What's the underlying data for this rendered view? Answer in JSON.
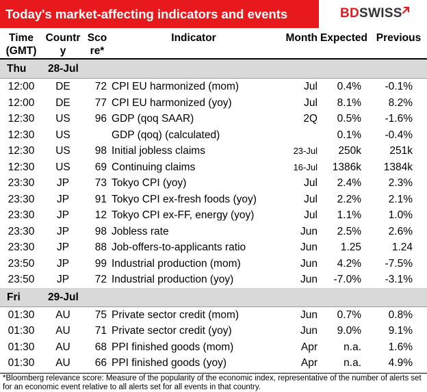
{
  "header": {
    "title": "Today's market-affecting indicators and events",
    "logo_bd": "BD",
    "logo_swiss": "SWISS",
    "accent_color": "#e8191c"
  },
  "columns": {
    "time": [
      "Time",
      "(GMT)"
    ],
    "country": [
      "Countr",
      "y"
    ],
    "score": [
      "Sco",
      "re*"
    ],
    "indicator": "Indicator",
    "month": "Month",
    "expected": "Expected",
    "previous": "Previous"
  },
  "days": [
    {
      "day": "Thu",
      "date": "28-Jul",
      "rows": [
        {
          "time": "12:00",
          "country": "DE",
          "score": "72",
          "indicator": "CPI EU harmonized (mom)",
          "month": "Jul",
          "expected": "0.4%",
          "previous": "-0.1%"
        },
        {
          "time": "12:00",
          "country": "DE",
          "score": "77",
          "indicator": "CPI EU harmonized (yoy)",
          "month": "Jul",
          "expected": "8.1%",
          "previous": "8.2%"
        },
        {
          "time": "12:30",
          "country": "US",
          "score": "96",
          "indicator": "GDP (qoq SAAR)",
          "month": "2Q",
          "expected": "0.5%",
          "previous": "-1.6%"
        },
        {
          "time": "12:30",
          "country": "US",
          "score": "",
          "indicator": "GDP (qoq) (calculated)",
          "month": "",
          "expected": "0.1%",
          "previous": "-0.4%"
        },
        {
          "time": "12:30",
          "country": "US",
          "score": "98",
          "indicator": "Initial jobless claims",
          "month": "23-Jul",
          "expected": "250k",
          "previous": "251k",
          "small_month": true
        },
        {
          "time": "12:30",
          "country": "US",
          "score": "69",
          "indicator": "Continuing claims",
          "month": "16-Jul",
          "expected": "1386k",
          "previous": "1384k",
          "small_month": true
        },
        {
          "time": "23:30",
          "country": "JP",
          "score": "73",
          "indicator": "Tokyo CPI (yoy)",
          "month": "Jul",
          "expected": "2.4%",
          "previous": "2.3%"
        },
        {
          "time": "23:30",
          "country": "JP",
          "score": "91",
          "indicator": "Tokyo CPI ex-fresh foods (yoy)",
          "month": "Jul",
          "expected": "2.2%",
          "previous": "2.1%"
        },
        {
          "time": "23:30",
          "country": "JP",
          "score": "12",
          "indicator": "Tokyo CPI ex-FF, energy (yoy)",
          "month": "Jul",
          "expected": "1.1%",
          "previous": "1.0%"
        },
        {
          "time": "23:30",
          "country": "JP",
          "score": "98",
          "indicator": "Jobless rate",
          "month": "Jun",
          "expected": "2.5%",
          "previous": "2.6%"
        },
        {
          "time": "23:30",
          "country": "JP",
          "score": "88",
          "indicator": "Job-offers-to-applicants ratio",
          "month": "Jun",
          "expected": "1.25",
          "previous": "1.24"
        },
        {
          "time": "23:50",
          "country": "JP",
          "score": "99",
          "indicator": "Industrial production (mom)",
          "month": "Jun",
          "expected": "4.2%",
          "previous": "-7.5%"
        },
        {
          "time": "23:50",
          "country": "JP",
          "score": "72",
          "indicator": "Industrial production (yoy)",
          "month": "Jun",
          "expected": "-7.0%",
          "previous": "-3.1%"
        }
      ]
    },
    {
      "day": "Fri",
      "date": "29-Jul",
      "rows": [
        {
          "time": "01:30",
          "country": "AU",
          "score": "75",
          "indicator": "Private sector credit (mom)",
          "month": "Jun",
          "expected": "0.7%",
          "previous": "0.8%"
        },
        {
          "time": "01:30",
          "country": "AU",
          "score": "71",
          "indicator": "Private sector credit (yoy)",
          "month": "Jun",
          "expected": "9.0%",
          "previous": "9.1%"
        },
        {
          "time": "01:30",
          "country": "AU",
          "score": "68",
          "indicator": "PPI finished goods (mom)",
          "month": "Apr",
          "expected": "n.a.",
          "previous": "1.6%"
        },
        {
          "time": "01:30",
          "country": "AU",
          "score": "66",
          "indicator": "PPI finished goods (yoy)",
          "month": "Apr",
          "expected": "n.a.",
          "previous": "4.9%"
        }
      ]
    }
  ],
  "footnote": "*Bloomberg relevance score:  Measure of the popularity of the economic index, representative of the number of alerts set for an economic event relative to all alerts set for all events in that country."
}
